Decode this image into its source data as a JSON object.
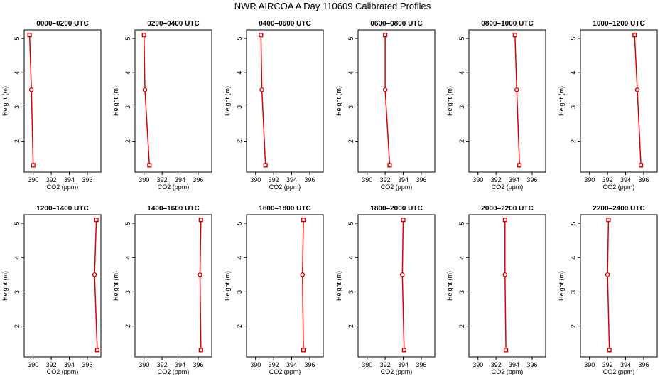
{
  "page_title": "NWR AIRCOA A  Day 110609  Calibrated Profiles",
  "chart_data": [
    {
      "type": "line",
      "title": "0000–0200 UTC",
      "xlabel": "CO2 (ppm)",
      "ylabel": "Height (m)",
      "xlim": [
        389,
        397.5
      ],
      "ylim": [
        1.1,
        5.25
      ],
      "xticks": [
        390,
        392,
        394,
        396
      ],
      "yticks": [
        2,
        3,
        4,
        5
      ],
      "x": [
        389.6,
        389.8,
        390.0
      ],
      "y": [
        5.1,
        3.5,
        1.3
      ],
      "markers": [
        "square",
        "circle",
        "square"
      ],
      "color": "#dd0000"
    },
    {
      "type": "line",
      "title": "0200–0400 UTC",
      "xlabel": "CO2 (ppm)",
      "ylabel": "Height (m)",
      "xlim": [
        389,
        397.5
      ],
      "ylim": [
        1.1,
        5.25
      ],
      "xticks": [
        390,
        392,
        394,
        396
      ],
      "yticks": [
        2,
        3,
        4,
        5
      ],
      "x": [
        390.0,
        390.1,
        390.6
      ],
      "y": [
        5.1,
        3.5,
        1.3
      ],
      "markers": [
        "square",
        "circle",
        "square"
      ],
      "color": "#dd0000"
    },
    {
      "type": "line",
      "title": "0400–0600 UTC",
      "xlabel": "CO2 (ppm)",
      "ylabel": "Height (m)",
      "xlim": [
        389,
        397.5
      ],
      "ylim": [
        1.1,
        5.25
      ],
      "xticks": [
        390,
        392,
        394,
        396
      ],
      "yticks": [
        2,
        3,
        4,
        5
      ],
      "x": [
        390.6,
        390.7,
        391.1
      ],
      "y": [
        5.1,
        3.5,
        1.3
      ],
      "markers": [
        "square",
        "circle",
        "square"
      ],
      "color": "#dd0000"
    },
    {
      "type": "line",
      "title": "0600–0800 UTC",
      "xlabel": "CO2 (ppm)",
      "ylabel": "Height (m)",
      "xlim": [
        389,
        397.5
      ],
      "ylim": [
        1.1,
        5.25
      ],
      "xticks": [
        390,
        392,
        394,
        396
      ],
      "yticks": [
        2,
        3,
        4,
        5
      ],
      "x": [
        392.0,
        392.0,
        392.5
      ],
      "y": [
        5.1,
        3.5,
        1.3
      ],
      "markers": [
        "square",
        "circle",
        "square"
      ],
      "color": "#dd0000"
    },
    {
      "type": "line",
      "title": "0800–1000 UTC",
      "xlabel": "CO2 (ppm)",
      "ylabel": "Height (m)",
      "xlim": [
        389,
        397.5
      ],
      "ylim": [
        1.1,
        5.25
      ],
      "xticks": [
        390,
        392,
        394,
        396
      ],
      "yticks": [
        2,
        3,
        4,
        5
      ],
      "x": [
        394.1,
        394.3,
        394.6
      ],
      "y": [
        5.1,
        3.5,
        1.3
      ],
      "markers": [
        "square",
        "circle",
        "square"
      ],
      "color": "#dd0000"
    },
    {
      "type": "line",
      "title": "1000–1200 UTC",
      "xlabel": "CO2 (ppm)",
      "ylabel": "Height (m)",
      "xlim": [
        389,
        397.5
      ],
      "ylim": [
        1.1,
        5.25
      ],
      "xticks": [
        390,
        392,
        394,
        396
      ],
      "yticks": [
        2,
        3,
        4,
        5
      ],
      "x": [
        395.0,
        395.3,
        395.7
      ],
      "y": [
        5.1,
        3.5,
        1.3
      ],
      "markers": [
        "square",
        "circle",
        "square"
      ],
      "color": "#dd0000"
    },
    {
      "type": "line",
      "title": "1200–1400 UTC",
      "xlabel": "CO2 (ppm)",
      "ylabel": "Height (m)",
      "xlim": [
        389,
        397.5
      ],
      "ylim": [
        1.1,
        5.25
      ],
      "xticks": [
        390,
        392,
        394,
        396
      ],
      "yticks": [
        2,
        3,
        4,
        5
      ],
      "x": [
        397.0,
        396.8,
        397.1
      ],
      "y": [
        5.1,
        3.5,
        1.3
      ],
      "markers": [
        "square",
        "circle",
        "square"
      ],
      "color": "#dd0000"
    },
    {
      "type": "line",
      "title": "1400–1600 UTC",
      "xlabel": "CO2 (ppm)",
      "ylabel": "Height (m)",
      "xlim": [
        389,
        397.5
      ],
      "ylim": [
        1.1,
        5.25
      ],
      "xticks": [
        390,
        392,
        394,
        396
      ],
      "yticks": [
        2,
        3,
        4,
        5
      ],
      "x": [
        396.3,
        396.2,
        396.3
      ],
      "y": [
        5.1,
        3.5,
        1.3
      ],
      "markers": [
        "square",
        "circle",
        "square"
      ],
      "color": "#dd0000"
    },
    {
      "type": "line",
      "title": "1600–1800 UTC",
      "xlabel": "CO2 (ppm)",
      "ylabel": "Height (m)",
      "xlim": [
        389,
        397.5
      ],
      "ylim": [
        1.1,
        5.25
      ],
      "xticks": [
        390,
        392,
        394,
        396
      ],
      "yticks": [
        2,
        3,
        4,
        5
      ],
      "x": [
        395.3,
        395.2,
        395.3
      ],
      "y": [
        5.1,
        3.5,
        1.3
      ],
      "markers": [
        "square",
        "circle",
        "square"
      ],
      "color": "#dd0000"
    },
    {
      "type": "line",
      "title": "1800–2000 UTC",
      "xlabel": "CO2 (ppm)",
      "ylabel": "Height (m)",
      "xlim": [
        389,
        397.5
      ],
      "ylim": [
        1.1,
        5.25
      ],
      "xticks": [
        390,
        392,
        394,
        396
      ],
      "yticks": [
        2,
        3,
        4,
        5
      ],
      "x": [
        394.0,
        393.9,
        394.1
      ],
      "y": [
        5.1,
        3.5,
        1.3
      ],
      "markers": [
        "square",
        "circle",
        "square"
      ],
      "color": "#dd0000"
    },
    {
      "type": "line",
      "title": "2000–2200 UTC",
      "xlabel": "CO2 (ppm)",
      "ylabel": "Height (m)",
      "xlim": [
        389,
        397.5
      ],
      "ylim": [
        1.1,
        5.25
      ],
      "xticks": [
        390,
        392,
        394,
        396
      ],
      "yticks": [
        2,
        3,
        4,
        5
      ],
      "x": [
        393.0,
        393.0,
        393.1
      ],
      "y": [
        5.1,
        3.5,
        1.3
      ],
      "markers": [
        "square",
        "circle",
        "square"
      ],
      "color": "#dd0000"
    },
    {
      "type": "line",
      "title": "2200–2400 UTC",
      "xlabel": "CO2 (ppm)",
      "ylabel": "Height (m)",
      "xlim": [
        389,
        397.5
      ],
      "ylim": [
        1.1,
        5.25
      ],
      "xticks": [
        390,
        392,
        394,
        396
      ],
      "yticks": [
        2,
        3,
        4,
        5
      ],
      "x": [
        392.1,
        392.0,
        392.2
      ],
      "y": [
        5.1,
        3.5,
        1.3
      ],
      "markers": [
        "square",
        "circle",
        "square"
      ],
      "color": "#dd0000"
    }
  ]
}
